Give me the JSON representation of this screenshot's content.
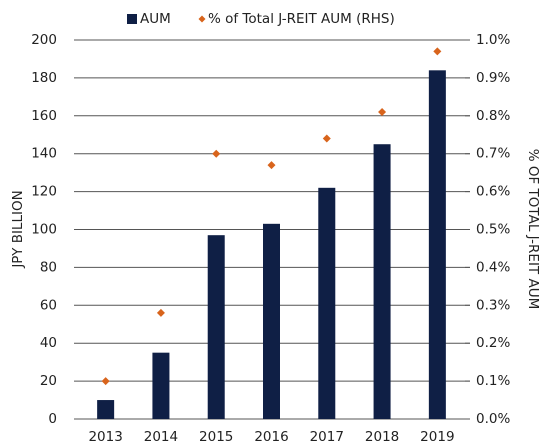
{
  "chart_data": {
    "type": "bar",
    "categories": [
      "2013",
      "2014",
      "2015",
      "2016",
      "2017",
      "2018",
      "2019"
    ],
    "series": [
      {
        "name": "AUM",
        "color": "#0f1f45",
        "values": [
          10,
          35,
          97,
          103,
          122,
          145,
          184
        ]
      },
      {
        "name": "% of Total J-REIT AUM (RHS)",
        "color": "#d8641c",
        "axis": "y2",
        "values": [
          0.1,
          0.28,
          0.7,
          0.67,
          0.74,
          0.81,
          0.97
        ]
      }
    ],
    "ylabel": "JPY BILLION",
    "y2label": "% OF TOTAL J-REIT AUM",
    "ylim": [
      0,
      200
    ],
    "yticks": [
      0,
      20,
      40,
      60,
      80,
      100,
      120,
      140,
      160,
      180,
      200
    ],
    "y2lim": [
      0,
      1.0
    ],
    "y2ticks": [
      {
        "value": 0,
        "label": "0.0%"
      },
      {
        "value": 0.1,
        "label": "0.1%"
      },
      {
        "value": 0.2,
        "label": "0.2%"
      },
      {
        "value": 0.3,
        "label": "0.3%"
      },
      {
        "value": 0.4,
        "label": "0.4%"
      },
      {
        "value": 0.5,
        "label": "0.5%"
      },
      {
        "value": 0.6,
        "label": "0.6%"
      },
      {
        "value": 0.7,
        "label": "0.7%"
      },
      {
        "value": 0.8,
        "label": "0.8%"
      },
      {
        "value": 0.9,
        "label": "0.9%"
      },
      {
        "value": 1.0,
        "label": "1.0%"
      }
    ],
    "grid": true,
    "legend": "top"
  }
}
